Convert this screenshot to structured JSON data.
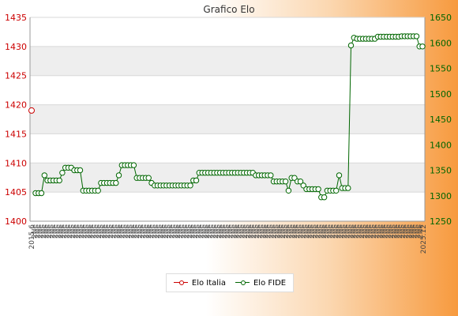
{
  "chart_data": {
    "type": "line",
    "title": "Grafico Elo",
    "xlabel": "",
    "left_axis": {
      "ylim": [
        1400,
        1435
      ],
      "ticks": [
        1400,
        1405,
        1410,
        1415,
        1420,
        1425,
        1430,
        1435
      ],
      "color": "#cc0000"
    },
    "right_axis": {
      "ylim": [
        1250,
        1650
      ],
      "ticks": [
        1250,
        1300,
        1350,
        1400,
        1450,
        1500,
        1550,
        1600,
        1650
      ],
      "color": "#006600"
    },
    "grid": true,
    "legend_position": "bottom-center",
    "x_start_label": "2015.6",
    "x_end_label": "2025.12",
    "x_repeated_label": "2Ne",
    "series": [
      {
        "name": "Elo Italia",
        "axis": "left",
        "color": "#cc0000",
        "values": [
          1419
        ]
      },
      {
        "name": "Elo FIDE",
        "axis": "right",
        "color": "#006600",
        "values": [
          1305,
          1305,
          1305,
          1340,
          1330,
          1330,
          1330,
          1330,
          1330,
          1345,
          1355,
          1355,
          1355,
          1350,
          1350,
          1350,
          1310,
          1310,
          1310,
          1310,
          1310,
          1310,
          1325,
          1325,
          1325,
          1325,
          1325,
          1325,
          1340,
          1360,
          1360,
          1360,
          1360,
          1360,
          1335,
          1335,
          1335,
          1335,
          1335,
          1325,
          1320,
          1320,
          1320,
          1320,
          1320,
          1320,
          1320,
          1320,
          1320,
          1320,
          1320,
          1320,
          1320,
          1330,
          1330,
          1345,
          1345,
          1345,
          1345,
          1345,
          1345,
          1345,
          1345,
          1345,
          1345,
          1345,
          1345,
          1345,
          1345,
          1345,
          1345,
          1345,
          1345,
          1345,
          1340,
          1340,
          1340,
          1340,
          1340,
          1340,
          1328,
          1328,
          1328,
          1328,
          1328,
          1310,
          1335,
          1335,
          1328,
          1328,
          1320,
          1313,
          1313,
          1313,
          1313,
          1313,
          1297,
          1297,
          1310,
          1310,
          1310,
          1310,
          1340,
          1315,
          1315,
          1315,
          1595,
          1610,
          1608,
          1608,
          1608,
          1608,
          1608,
          1608,
          1608,
          1612,
          1612,
          1612,
          1612,
          1612,
          1612,
          1612,
          1612,
          1613,
          1613,
          1613,
          1613,
          1613,
          1613,
          1593,
          1593
        ]
      }
    ]
  }
}
